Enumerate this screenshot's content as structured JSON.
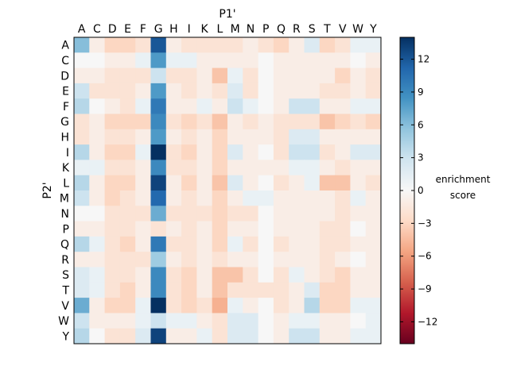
{
  "chart_data": {
    "type": "heatmap",
    "title": "",
    "xlabel": "P1'",
    "ylabel": "P2'",
    "x_categories": [
      "A",
      "C",
      "D",
      "E",
      "F",
      "G",
      "H",
      "I",
      "K",
      "L",
      "M",
      "N",
      "P",
      "Q",
      "R",
      "S",
      "T",
      "V",
      "W",
      "Y"
    ],
    "y_categories": [
      "A",
      "C",
      "D",
      "E",
      "F",
      "G",
      "H",
      "I",
      "K",
      "L",
      "M",
      "N",
      "P",
      "Q",
      "R",
      "S",
      "T",
      "V",
      "W",
      "Y"
    ],
    "values": [
      [
        6,
        -1,
        -3,
        -3,
        -2,
        12,
        -1,
        -2,
        -2,
        -2,
        -2,
        -1,
        -2,
        -3,
        -1,
        2,
        -3,
        -2,
        1,
        1
      ],
      [
        0,
        0,
        -1,
        -1,
        1,
        8,
        1,
        1,
        -1,
        -1,
        -1,
        -1,
        0,
        -1,
        -1,
        -1,
        -1,
        -1,
        0,
        -1
      ],
      [
        -1,
        -1,
        -2,
        -2,
        -2,
        3,
        -2,
        -2,
        -1,
        -4,
        1,
        -2,
        0,
        -1,
        -1,
        -1,
        -1,
        -3,
        -1,
        -2
      ],
      [
        3,
        -2,
        -2,
        -2,
        -1,
        8,
        -1,
        -2,
        -1,
        -2,
        2,
        -2,
        0,
        -1,
        -1,
        -1,
        -2,
        -2,
        -1,
        -2
      ],
      [
        4,
        0,
        -1,
        -2,
        1,
        10,
        -1,
        -1,
        1,
        -1,
        3,
        1,
        0,
        -1,
        3,
        3,
        -1,
        -1,
        1,
        1
      ],
      [
        -2,
        -1,
        -3,
        -3,
        -3,
        9,
        -2,
        -3,
        -2,
        -4,
        -1,
        -2,
        -1,
        -2,
        -2,
        -2,
        -4,
        -3,
        -2,
        -3
      ],
      [
        -2,
        -1,
        -2,
        -2,
        -1,
        8,
        -1,
        -2,
        -1,
        -3,
        -1,
        -1,
        -1,
        -2,
        2,
        2,
        -1,
        -1,
        -1,
        -1
      ],
      [
        4,
        -1,
        -3,
        -3,
        1,
        14,
        -2,
        -3,
        -1,
        -3,
        2,
        -1,
        0,
        -2,
        3,
        3,
        -2,
        -1,
        2,
        2
      ],
      [
        1,
        1,
        -2,
        -2,
        -1,
        9,
        -2,
        -2,
        -1,
        -3,
        -1,
        -1,
        -1,
        -1,
        1,
        1,
        -1,
        -2,
        -1,
        -1
      ],
      [
        4,
        -1,
        -3,
        -3,
        -1,
        13,
        -1,
        -3,
        -1,
        -4,
        2,
        -1,
        0,
        -2,
        -1,
        1,
        -4,
        -4,
        -1,
        -2
      ],
      [
        3,
        -1,
        -3,
        -2,
        -1,
        11,
        -1,
        -2,
        -1,
        -3,
        -1,
        1,
        1,
        -1,
        -1,
        -1,
        -1,
        -2,
        1,
        -1
      ],
      [
        0,
        0,
        -2,
        -2,
        -2,
        7,
        -2,
        -2,
        -2,
        -3,
        -2,
        -2,
        0,
        -1,
        -1,
        -1,
        -1,
        -2,
        -1,
        -1
      ],
      [
        -1,
        -1,
        -2,
        -2,
        -1,
        -2,
        -1,
        -2,
        -1,
        -3,
        -1,
        -1,
        0,
        -1,
        -1,
        -1,
        -2,
        -2,
        0,
        -1
      ],
      [
        4,
        1,
        -2,
        -3,
        -1,
        10,
        -2,
        -2,
        -1,
        -3,
        1,
        -2,
        0,
        -2,
        -1,
        -1,
        -2,
        -2,
        -1,
        -1
      ],
      [
        -1,
        -1,
        -2,
        -2,
        -2,
        5,
        -1,
        -2,
        -1,
        -2,
        -1,
        -1,
        0,
        -1,
        -1,
        -1,
        -2,
        -1,
        0,
        -1
      ],
      [
        2,
        1,
        -2,
        -2,
        -1,
        9,
        -2,
        -3,
        -1,
        -4,
        -4,
        -2,
        0,
        -2,
        1,
        -1,
        -2,
        -3,
        -1,
        -1
      ],
      [
        2,
        1,
        -2,
        -3,
        -1,
        9,
        -2,
        -3,
        -1,
        -4,
        -2,
        -2,
        -2,
        -2,
        -1,
        2,
        -3,
        -3,
        -1,
        -1
      ],
      [
        7,
        -1,
        -3,
        -3,
        1,
        14,
        -2,
        -3,
        -2,
        -5,
        1,
        -1,
        0,
        -2,
        -1,
        4,
        -3,
        -3,
        1,
        1
      ],
      [
        3,
        -1,
        -1,
        -1,
        1,
        3,
        1,
        1,
        -1,
        -2,
        2,
        2,
        0,
        -1,
        1,
        1,
        -1,
        -1,
        0,
        1
      ],
      [
        4,
        0,
        -2,
        -2,
        2,
        13,
        -1,
        -1,
        1,
        -2,
        2,
        2,
        0,
        -1,
        3,
        3,
        -1,
        -1,
        1,
        1
      ]
    ],
    "colorbar": {
      "label": [
        "enrichment",
        "score"
      ],
      "range": [
        -14,
        14
      ],
      "ticks": [
        -12,
        -9,
        -6,
        -3,
        0,
        3,
        6,
        9,
        12
      ],
      "tick_labels": [
        "−12",
        "−9",
        "−6",
        "−3",
        "0",
        "3",
        "6",
        "9",
        "12"
      ],
      "colormap": "RdBu"
    }
  }
}
